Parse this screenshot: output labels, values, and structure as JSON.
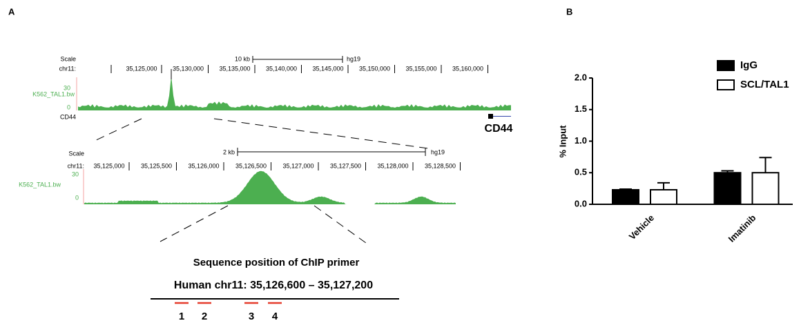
{
  "panel_a": {
    "label": "A",
    "track1": {
      "scale_label": "Scale",
      "chrom": "chr11:",
      "scale_bar": "10 kb",
      "assembly": "hg19",
      "coords": [
        "35,125,000",
        "35,130,000",
        "35,135,000",
        "35,140,000",
        "35,145,000",
        "35,150,000",
        "35,155,000",
        "35,160,000"
      ],
      "track_name": "K562_TAL1.bw",
      "max_label": "30",
      "min_label": "0",
      "gene": "CD44"
    },
    "gene_name": "CD44",
    "track2": {
      "scale_label": "Scale",
      "chrom": "chr11:",
      "scale_bar": "2 kb",
      "assembly": "hg19",
      "coords": [
        "35,125,000",
        "35,125,500",
        "35,126,000",
        "35,126,500",
        "35,127,000",
        "35,127,500",
        "35,128,000",
        "35,128,500"
      ],
      "track_name": "K562_TAL1.bw",
      "max_label": "30",
      "min_label": "0"
    },
    "primer_title": "Sequence position of ChIP primer",
    "primer_region": "Human chr11: 35,126,600 – 35,127,200",
    "primers": [
      "1",
      "2",
      "3",
      "4"
    ]
  },
  "chart_data": {
    "type": "bar",
    "panel_label": "B",
    "ylabel": "% Input",
    "categories": [
      "Vehicle",
      "Imatinib"
    ],
    "series": [
      {
        "name": "IgG",
        "color": "#000000",
        "values": [
          0.23,
          0.5
        ],
        "errors": [
          0.01,
          0.03
        ]
      },
      {
        "name": "SCL/TAL1",
        "color": "#ffffff",
        "values": [
          0.23,
          0.5
        ],
        "errors": [
          0.11,
          0.24
        ]
      }
    ],
    "ylim": [
      0,
      2.0
    ],
    "yticks": [
      {
        "value": 0,
        "label": "0.0"
      },
      {
        "value": 0.5,
        "label": "0.5"
      },
      {
        "value": 1.0,
        "label": "1.0"
      },
      {
        "value": 1.5,
        "label": "1.5"
      },
      {
        "value": 2.0,
        "label": "2.0"
      }
    ],
    "legend": "top-right"
  }
}
